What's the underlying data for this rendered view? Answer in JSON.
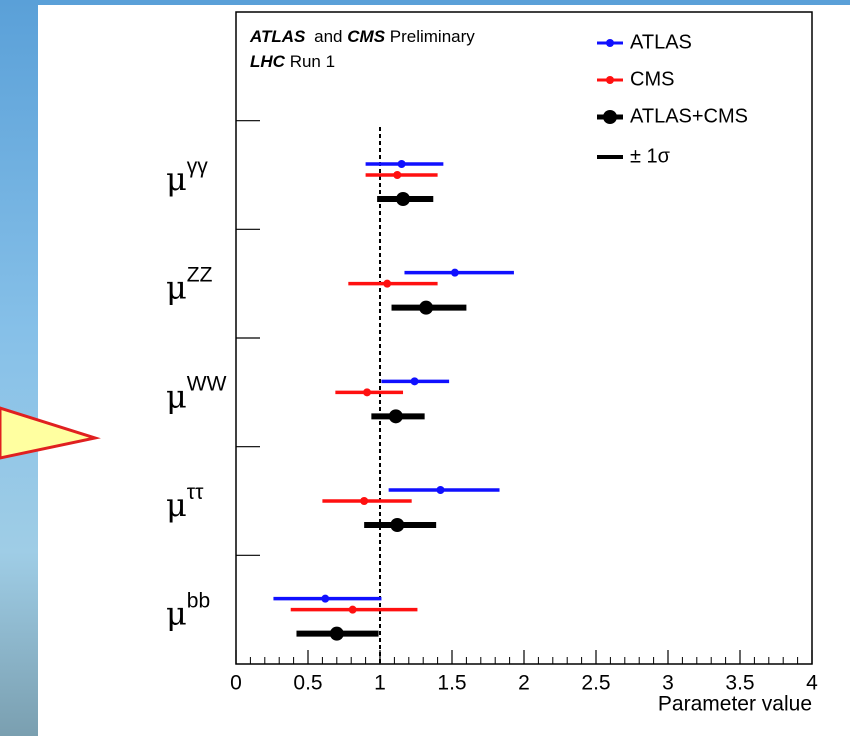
{
  "chart_data": {
    "type": "forest",
    "categories": [
      "μγγ",
      "μZZ",
      "μWW",
      "μττ",
      "μbb"
    ],
    "series": [
      {
        "name": "ATLAS",
        "color": "#1010ff",
        "values": [
          1.15,
          1.52,
          1.24,
          1.42,
          0.62
        ],
        "err_minus": [
          0.25,
          0.35,
          0.23,
          0.36,
          0.36
        ],
        "err_plus": [
          0.29,
          0.41,
          0.24,
          0.41,
          0.39
        ]
      },
      {
        "name": "CMS",
        "color": "#ff1010",
        "values": [
          1.12,
          1.05,
          0.91,
          0.89,
          0.81
        ],
        "err_minus": [
          0.22,
          0.27,
          0.22,
          0.29,
          0.43
        ],
        "err_plus": [
          0.28,
          0.35,
          0.25,
          0.33,
          0.45
        ]
      },
      {
        "name": "ATLAS+CMS",
        "color": "#000000",
        "values": [
          1.16,
          1.32,
          1.11,
          1.12,
          0.7
        ],
        "err_minus": [
          0.18,
          0.24,
          0.17,
          0.23,
          0.28
        ],
        "err_plus": [
          0.21,
          0.28,
          0.2,
          0.27,
          0.29
        ]
      }
    ],
    "legend_error_label": "± 1σ",
    "xlabel": "Parameter value",
    "xlim": [
      0,
      4
    ],
    "xticks": [
      0,
      0.5,
      1,
      1.5,
      2,
      2.5,
      3,
      3.5,
      4
    ],
    "reference_line": 1,
    "annotation": {
      "atlas": "ATLAS",
      "and": "and",
      "cms": "CMS",
      "preliminary": "Preliminary",
      "lhc": "LHC",
      "run": "Run 1"
    }
  }
}
